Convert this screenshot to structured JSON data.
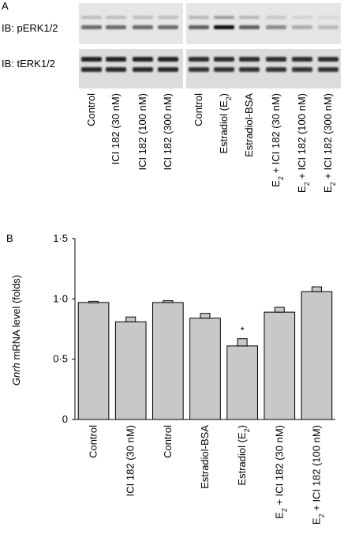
{
  "panel_a": {
    "label": "A",
    "blot_labels": [
      "IB: pERK1/2",
      "IB: tERK1/2"
    ],
    "lanes_left": [
      "Control",
      "ICI 182 (30 nM)",
      "ICI 182 (100 nM)",
      "ICI 182 (300 nM)"
    ],
    "lanes_right": [
      {
        "text": "Control"
      },
      {
        "text": "Estradiol (E",
        "sub": "2",
        "after": ")"
      },
      {
        "text": "Estradiol-BSA"
      },
      {
        "text": "E",
        "sub": "2",
        "after": " + ICI 182 (30 nM)"
      },
      {
        "text": "E",
        "sub": "2",
        "after": " + ICI 182 (100 nM)"
      },
      {
        "text": "E",
        "sub": "2",
        "after": " + ICI 182 (300 nM)"
      }
    ],
    "perk_band_intensity": [
      0.55,
      0.55,
      0.55,
      0.55,
      0.6,
      0.95,
      0.6,
      0.4,
      0.25,
      0.2
    ],
    "terk_band_intensity": [
      0.85,
      0.85,
      0.85,
      0.85,
      0.8,
      0.8,
      0.8,
      0.8,
      0.8,
      0.8
    ]
  },
  "chart_data": {
    "type": "bar",
    "panel_label": "B",
    "ylabel_italic": "Gnrh",
    "ylabel_rest": " mRNA level (folds)",
    "ylim": [
      0,
      1.5
    ],
    "ytick_labels": [
      "0",
      "0·5",
      "1·0",
      "1·5"
    ],
    "ytick_values": [
      0,
      0.5,
      1.0,
      1.5
    ],
    "categories": [
      {
        "text": "Control"
      },
      {
        "text": "ICI 182 (30 nM)"
      },
      {
        "text": "Control"
      },
      {
        "text": "Estradiol-BSA"
      },
      {
        "text": "Estradiol (E",
        "sub": "2",
        "after": ")"
      },
      {
        "text": "E",
        "sub": "2",
        "after": " + ICI 182 (30 nM)"
      },
      {
        "text": "E",
        "sub": "2",
        "after": " + ICI 182 (100 nM)"
      }
    ],
    "values": [
      0.97,
      0.81,
      0.97,
      0.84,
      0.61,
      0.89,
      1.06
    ],
    "errors": [
      0.01,
      0.04,
      0.015,
      0.04,
      0.06,
      0.04,
      0.04
    ],
    "significance": [
      "",
      "",
      "",
      "",
      "*",
      "",
      ""
    ],
    "bar_color": "#c8c8c8",
    "grid": false
  }
}
